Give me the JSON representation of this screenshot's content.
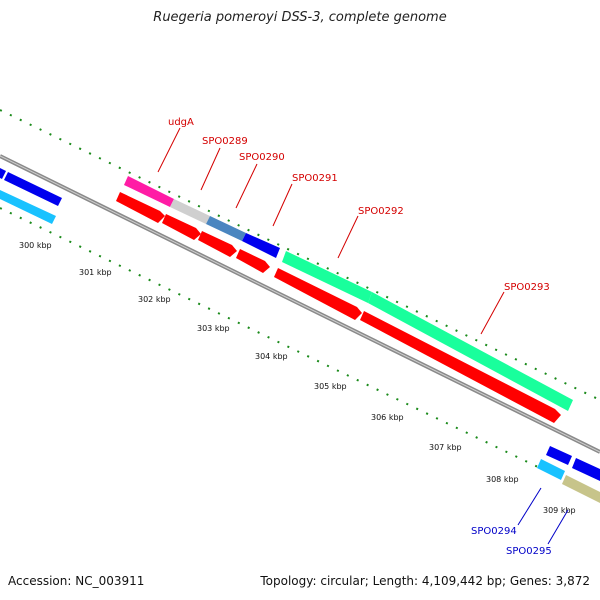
{
  "title": "Ruegeria pomeroyi DSS-3, complete genome",
  "footer": {
    "accession": "Accession: NC_003911",
    "summary": "Topology: circular; Length: 4,109,442 bp; Genes: 3,872"
  },
  "ticks": [
    "300 kbp",
    "301 kbp",
    "302 kbp",
    "303 kbp",
    "304 kbp",
    "305 kbp",
    "306 kbp",
    "307 kbp",
    "308 kbp",
    "309 kbp"
  ],
  "genes_red_labels": [
    "udgA",
    "SPO0289",
    "SPO0290",
    "SPO0291",
    "SPO0292",
    "SPO0293"
  ],
  "genes_blue_labels": [
    "SPO0294",
    "SPO0295"
  ],
  "colors": {
    "backbone": "#8a8a8a",
    "cds": "#ff0000",
    "blue_feature": "#0000ee",
    "cyan_feature": "#19c2ff",
    "green_feature": "#19ff9c",
    "magenta_feature": "#ff1ca5",
    "grey_feature": "#cfcfcf",
    "steel_feature": "#4a86c0",
    "tan_feature": "#c7c48a",
    "tick": "#1a8a1a",
    "label_red": "#d40000",
    "label_blue": "#0000c8"
  }
}
